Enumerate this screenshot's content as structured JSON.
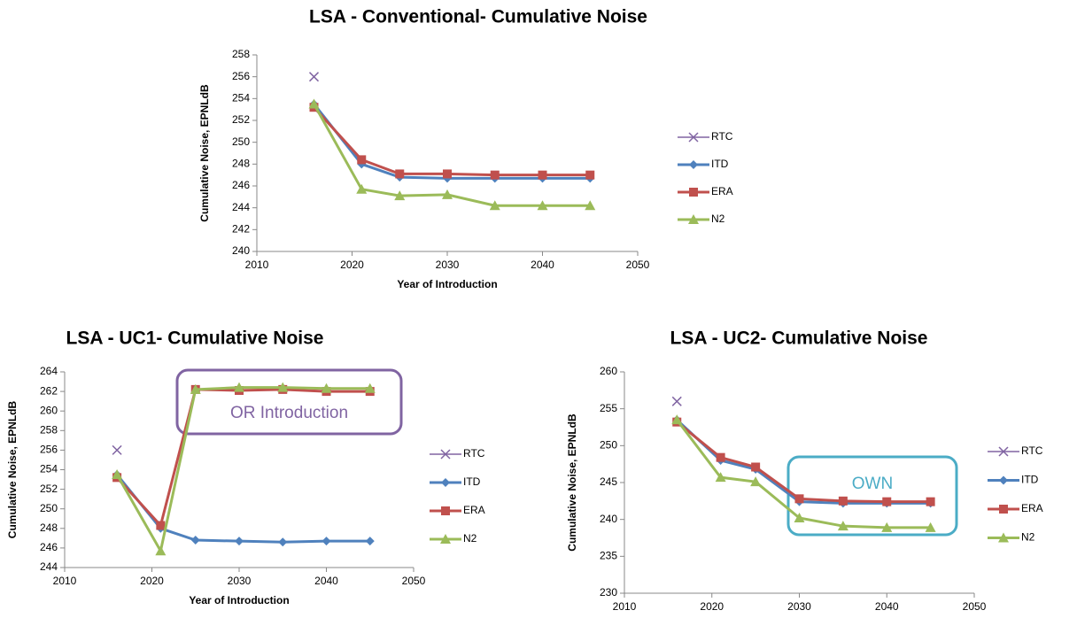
{
  "chart_data": [
    {
      "type": "line",
      "title": "LSA - Conventional- Cumulative Noise",
      "x_label": "Year of Introduction",
      "y_label": "Cumulative Noise, EPNLdB",
      "x": [
        2016,
        2021,
        2025,
        2030,
        2035,
        2040,
        2045
      ],
      "series": [
        {
          "name": "RTC",
          "color": "#8064a2",
          "marker": "x",
          "values": [
            256,
            null,
            null,
            null,
            null,
            null,
            null
          ]
        },
        {
          "name": "ITD",
          "color": "#4f81bd",
          "marker": "diamond",
          "values": [
            253.5,
            248,
            246.8,
            246.7,
            246.7,
            246.7,
            246.7
          ]
        },
        {
          "name": "ERA",
          "color": "#c0504d",
          "marker": "square",
          "values": [
            253.2,
            248.4,
            247.1,
            247.1,
            247.0,
            247.0,
            247.0
          ]
        },
        {
          "name": "N2",
          "color": "#9bbb59",
          "marker": "triangle",
          "values": [
            253.5,
            245.7,
            245.1,
            245.2,
            244.2,
            244.2,
            244.2
          ]
        }
      ],
      "xlim": [
        2010,
        2050
      ],
      "xticks": [
        2010,
        2020,
        2030,
        2040,
        2050
      ],
      "ylim": [
        240,
        258
      ],
      "yticks": [
        240,
        242,
        244,
        246,
        248,
        250,
        252,
        254,
        256,
        258
      ],
      "legend": "right"
    },
    {
      "type": "line",
      "title": "LSA - UC1- Cumulative Noise",
      "x_label": "Year of Introduction",
      "y_label": "Cumulative Noise, EPNLdB",
      "x": [
        2016,
        2021,
        2025,
        2030,
        2035,
        2040,
        2045
      ],
      "series": [
        {
          "name": "RTC",
          "color": "#8064a2",
          "marker": "x",
          "values": [
            256,
            null,
            null,
            null,
            null,
            null,
            null
          ]
        },
        {
          "name": "ITD",
          "color": "#4f81bd",
          "marker": "diamond",
          "values": [
            253.5,
            248,
            246.8,
            246.7,
            246.6,
            246.7,
            246.7
          ]
        },
        {
          "name": "ERA",
          "color": "#c0504d",
          "marker": "square",
          "values": [
            253.2,
            248.3,
            262.2,
            262.1,
            262.2,
            262.0,
            262.0
          ]
        },
        {
          "name": "N2",
          "color": "#9bbb59",
          "marker": "triangle",
          "values": [
            253.5,
            245.7,
            262.2,
            262.4,
            262.4,
            262.3,
            262.3
          ]
        }
      ],
      "xlim": [
        2010,
        2050
      ],
      "xticks": [
        2010,
        2020,
        2030,
        2040,
        2050
      ],
      "ylim": [
        244,
        264
      ],
      "yticks": [
        244,
        246,
        248,
        250,
        252,
        254,
        256,
        258,
        260,
        262,
        264
      ],
      "legend": "right",
      "annotation": {
        "text": "OR Introduction",
        "color": "#8064a2"
      }
    },
    {
      "type": "line",
      "title": "LSA - UC2- Cumulative Noise",
      "x_label": "Year of Introduction",
      "y_label": "Cumulative Noise, EPNLdB",
      "x": [
        2016,
        2021,
        2025,
        2030,
        2035,
        2040,
        2045
      ],
      "series": [
        {
          "name": "RTC",
          "color": "#8064a2",
          "marker": "x",
          "values": [
            256,
            null,
            null,
            null,
            null,
            null,
            null
          ]
        },
        {
          "name": "ITD",
          "color": "#4f81bd",
          "marker": "diamond",
          "values": [
            253.5,
            248,
            246.8,
            242.4,
            242.2,
            242.2,
            242.2
          ]
        },
        {
          "name": "ERA",
          "color": "#c0504d",
          "marker": "square",
          "values": [
            253.2,
            248.4,
            247.1,
            242.8,
            242.5,
            242.4,
            242.4
          ]
        },
        {
          "name": "N2",
          "color": "#9bbb59",
          "marker": "triangle",
          "values": [
            253.5,
            245.7,
            245.1,
            240.2,
            239.1,
            238.9,
            238.9
          ]
        }
      ],
      "xlim": [
        2010,
        2050
      ],
      "xticks": [
        2010,
        2020,
        2030,
        2040,
        2050
      ],
      "ylim": [
        230,
        260
      ],
      "yticks": [
        230,
        235,
        240,
        245,
        250,
        255,
        260
      ],
      "legend": "right",
      "annotation": {
        "text": "OWN",
        "color": "#4bacc6"
      }
    }
  ]
}
